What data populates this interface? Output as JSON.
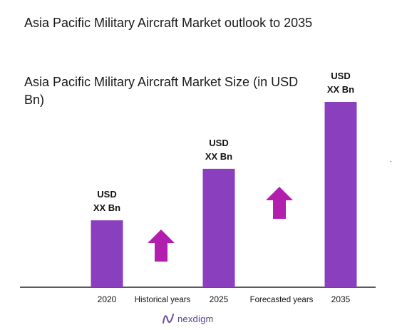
{
  "title": "Asia Pacific Military Aircraft Market outlook to 2035",
  "subtitle": "Asia Pacific Military Aircraft Market Size (in USD Bn)",
  "extra_mark": ".",
  "brand": {
    "name": "nexdigm",
    "color": "#6a4ca0"
  },
  "colors": {
    "bar": "#8a3fbf",
    "arrow": "#b21fae",
    "axis": "#222222"
  },
  "chart_data": {
    "type": "bar",
    "title": "Asia Pacific Military Aircraft Market Size (in USD Bn)",
    "categories": [
      "2020",
      "2025",
      "2035"
    ],
    "values": [
      1.0,
      1.77,
      2.77
    ],
    "value_labels": [
      [
        "USD",
        "XX Bn"
      ],
      [
        "USD",
        "XX Bn"
      ],
      [
        "USD",
        "XX Bn"
      ]
    ],
    "between_labels": [
      "Historical years",
      "Forecasted years"
    ],
    "arrows": [
      "up",
      "up"
    ],
    "xlabel": "",
    "ylabel": "",
    "grid": false,
    "legend": "none"
  }
}
